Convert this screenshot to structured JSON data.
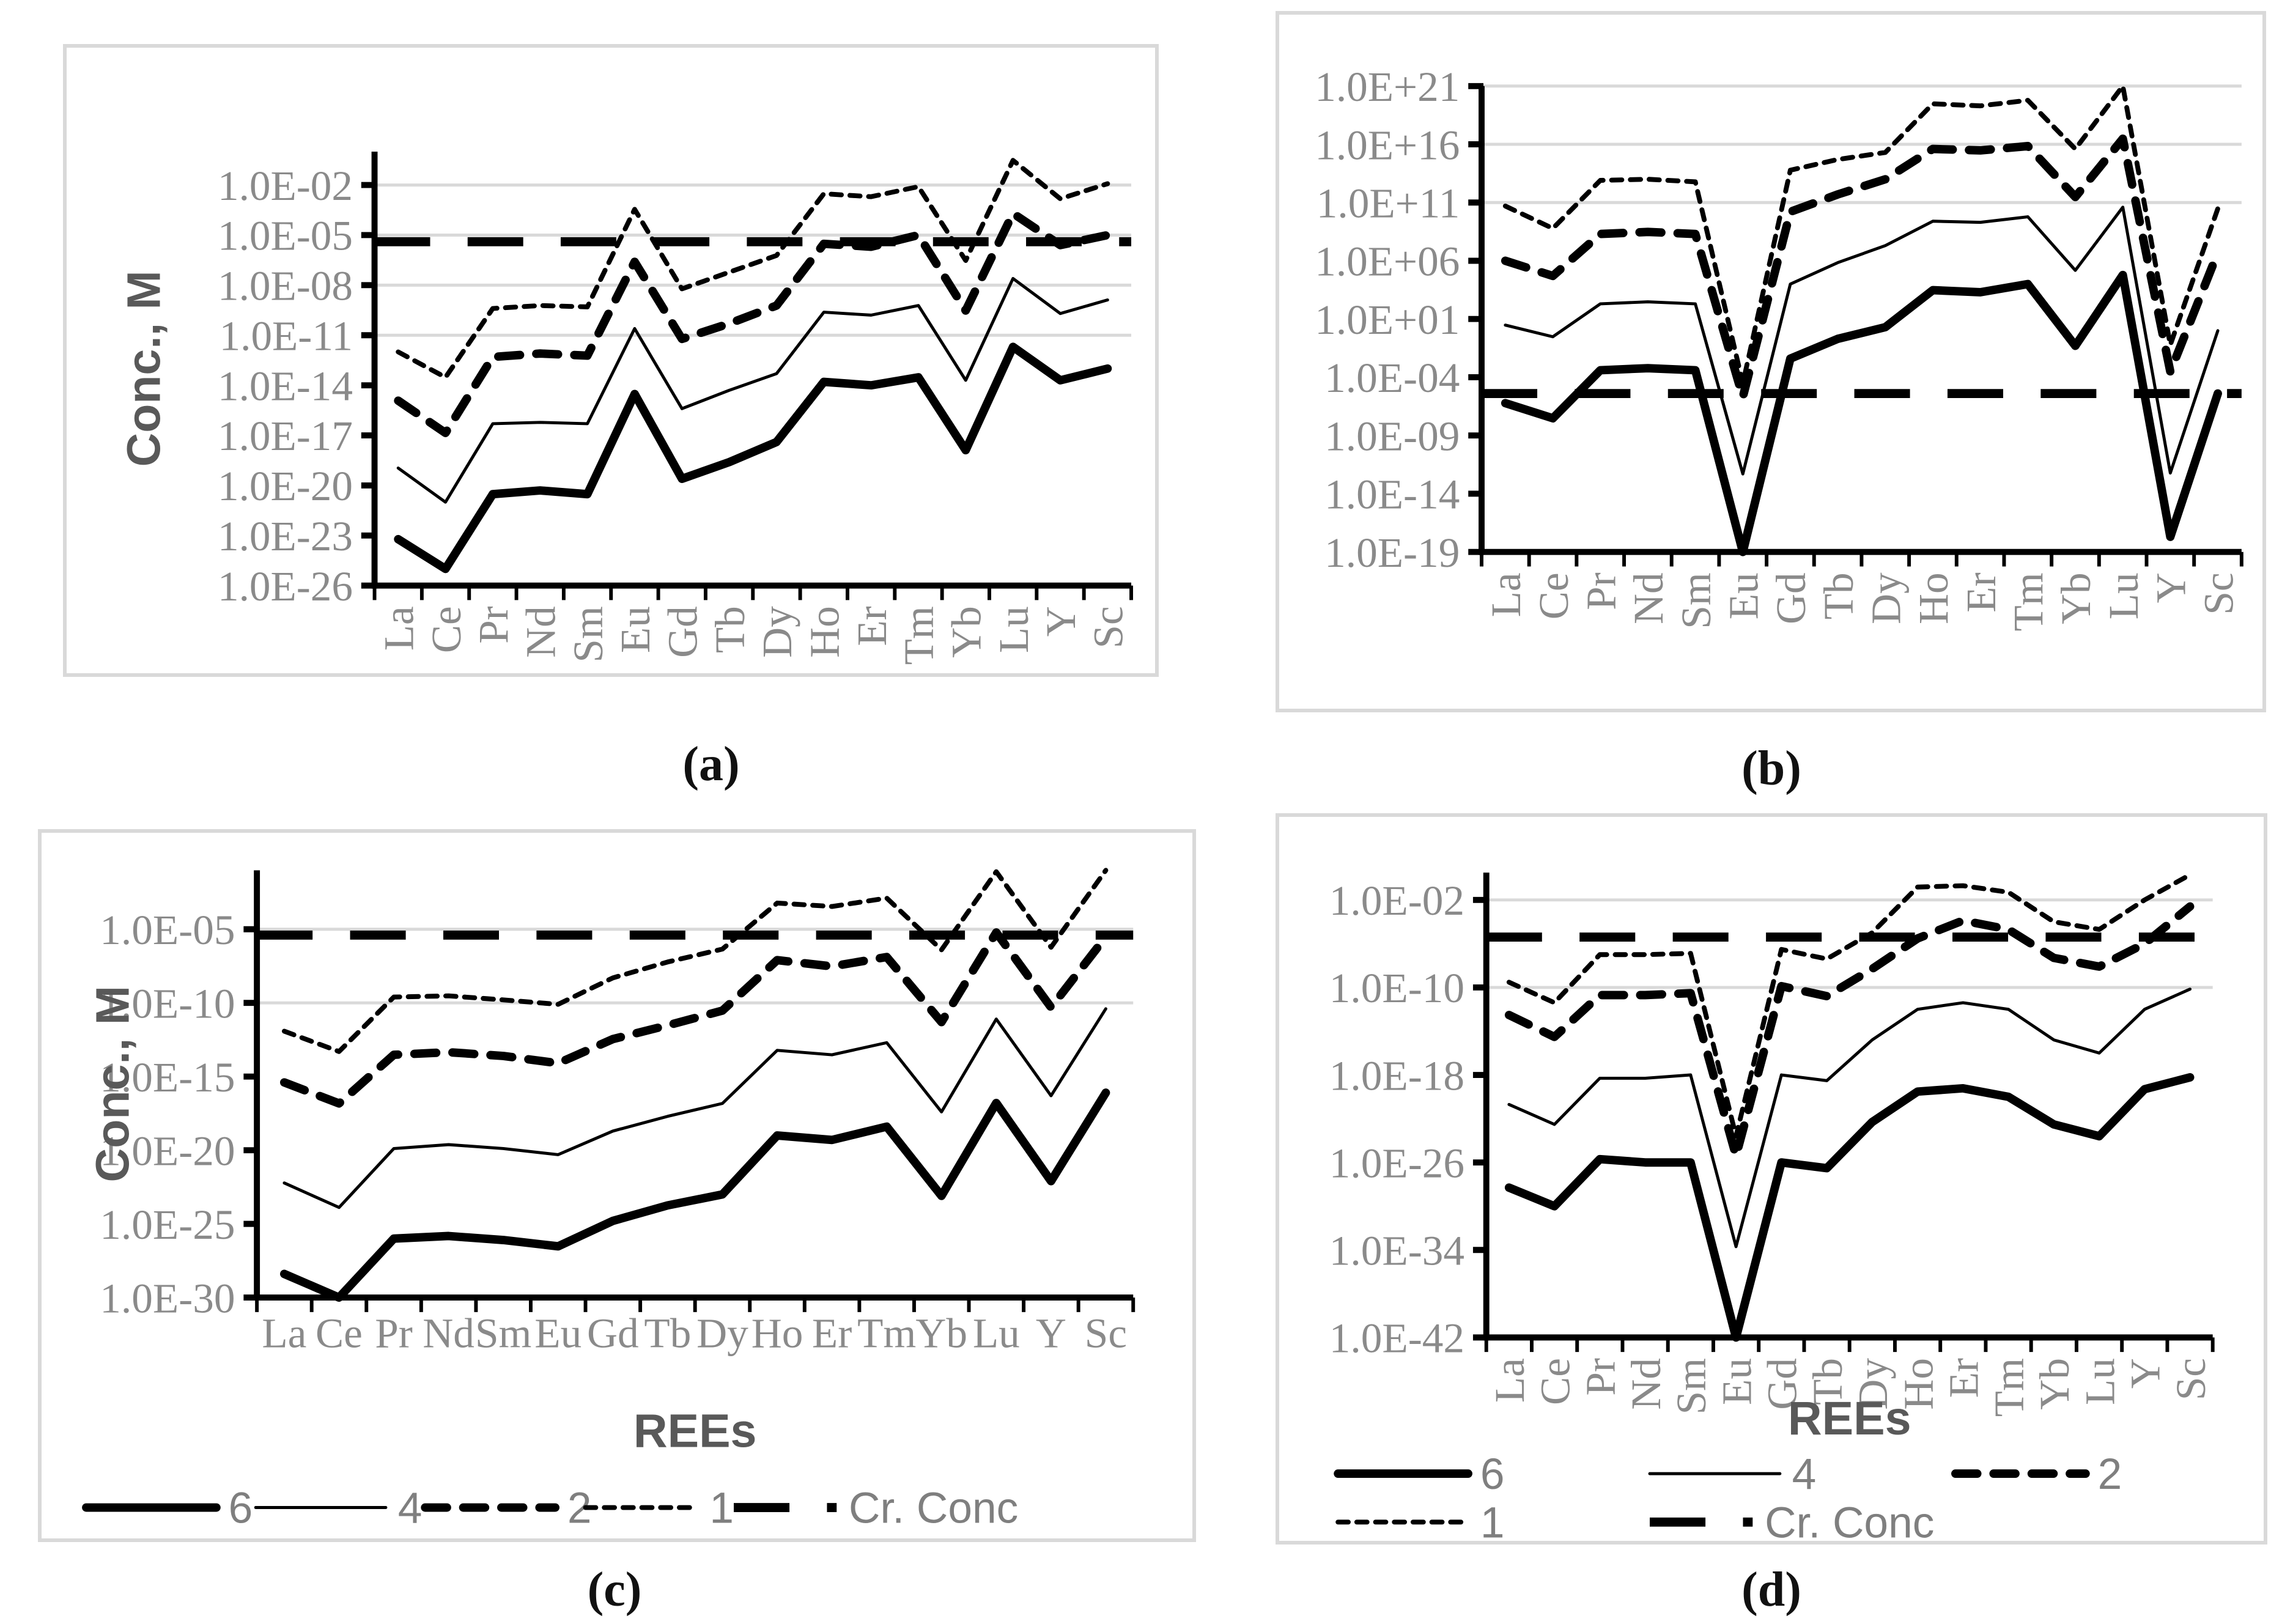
{
  "colors": {
    "series_line": "#000000",
    "gridline": "#d9d9d9",
    "tick_label": "#8a8a8a",
    "axis_title": "#595959",
    "legend_text": "#7f7f7f",
    "panel_border": "#d9d9d9",
    "caption": "#111111"
  },
  "captions": {
    "a": "(a)",
    "b": "(b)",
    "c": "(c)",
    "d": "(d)"
  },
  "chart_data": [
    {
      "id": "a",
      "type": "line",
      "caption": "(a)",
      "ylabel": "Conc., M",
      "xlabel": "",
      "x_categories": [
        "La",
        "Ce",
        "Pr",
        "Nd",
        "Sm",
        "Eu",
        "Gd",
        "Tb",
        "Dy",
        "Ho",
        "Er",
        "Tm",
        "Yb",
        "Lu",
        "Y",
        "Sc"
      ],
      "x_label_rotated": true,
      "y_axis": {
        "ticks": [
          "1.0E-02",
          "1.0E-05",
          "1.0E-08",
          "1.0E-11",
          "1.0E-14",
          "1.0E-17",
          "1.0E-20",
          "1.0E-23",
          "1.0E-26"
        ],
        "tick_exps": [
          -2,
          -5,
          -8,
          -11,
          -14,
          -17,
          -20,
          -23,
          -26
        ],
        "ylim_exp": [
          0,
          -26
        ],
        "grid_exps": [
          -2,
          -5,
          -8,
          -11
        ]
      },
      "series": [
        {
          "name": "6",
          "style": "solid-thick",
          "values": [
            6e-24,
            1e-25,
            3e-21,
            5e-21,
            3e-21,
            3e-15,
            2.5e-20,
            2.5e-19,
            4e-18,
            1.6e-14,
            1e-14,
            3e-14,
            1.3e-18,
            2e-12,
            2e-14,
            1e-13
          ]
        },
        {
          "name": "4",
          "style": "solid-thin",
          "values": [
            1.1e-19,
            1e-21,
            5e-17,
            6e-17,
            5e-17,
            2.5e-11,
            4e-16,
            5e-15,
            5e-14,
            2.4e-10,
            1.6e-10,
            6e-10,
            2e-14,
            2.5e-08,
            2e-10,
            1.3e-09
          ]
        },
        {
          "name": "2",
          "style": "dash-thick",
          "values": [
            1.2e-15,
            1.4e-17,
            5e-13,
            8e-13,
            6e-13,
            2.5e-07,
            6e-12,
            5e-11,
            6e-10,
            3e-06,
            2e-06,
            1e-05,
            3e-10,
            0.0002,
            2.5e-06,
            1e-05
          ]
        },
        {
          "name": "1",
          "style": "dash-fine",
          "values": [
            1e-12,
            3e-14,
            4e-10,
            6e-10,
            5e-10,
            0.00035,
            6e-09,
            6e-08,
            6e-07,
            0.003,
            0.002,
            0.008,
            3e-07,
            0.3,
            0.0015,
            0.012
          ]
        },
        {
          "name": "Cr. Conc",
          "style": "dash-long",
          "constant": 4e-06
        }
      ],
      "legend": null
    },
    {
      "id": "b",
      "type": "line",
      "caption": "(b)",
      "ylabel": "",
      "xlabel": "",
      "x_categories": [
        "La",
        "Ce",
        "Pr",
        "Nd",
        "Sm",
        "Eu",
        "Gd",
        "Tb",
        "Dy",
        "Ho",
        "Er",
        "Tm",
        "Yb",
        "Lu",
        "Y",
        "Sc"
      ],
      "x_label_rotated": true,
      "y_axis": {
        "ticks": [
          "1.0E+21",
          "1.0E+16",
          "1.0E+11",
          "1.0E+06",
          "1.0E+01",
          "1.0E-04",
          "1.0E-09",
          "1.0E-14",
          "1.0E-19"
        ],
        "tick_exps": [
          21,
          16,
          11,
          6,
          1,
          -4,
          -9,
          -14,
          -19
        ],
        "ylim_exp": [
          21,
          -19
        ],
        "grid_exps": [
          21,
          16,
          11
        ]
      },
      "series": [
        {
          "name": "6",
          "style": "solid-thick",
          "values": [
            6e-07,
            3e-08,
            0.0004,
            0.0006,
            0.0004,
            1e-19,
            0.004,
            0.2,
            2.0,
            3000.0,
            2000.0,
            10000.0,
            0.05,
            60000.0,
            2e-18,
            4e-06
          ]
        },
        {
          "name": "4",
          "style": "solid-thin",
          "values": [
            3.0,
            0.3,
            200.0,
            300.0,
            200.0,
            5e-13,
            10000.0,
            700000.0,
            20000000.0,
            2500000000.0,
            2000000000.0,
            6000000000.0,
            150000.0,
            40000000000.0,
            6e-13,
            1.0
          ]
        },
        {
          "name": "2",
          "style": "dash-thick",
          "values": [
            1000000.0,
            50000.0,
            200000000.0,
            300000000.0,
            200000000.0,
            2e-06,
            16000000000.0,
            500000000000.0,
            10000000000000.0,
            4000000000000000.0,
            3000000000000000.0,
            7000000000000000.0,
            300000000000.0,
            3e+16,
            0.0003,
            5000000.0
          ]
        },
        {
          "name": "1",
          "style": "dash-fine",
          "values": [
            50000000000.0,
            600000000.0,
            8000000000000.0,
            10000000000000.0,
            6000000000000.0,
            3e-05,
            60000000000000.0,
            500000000000000.0,
            2000000000000000.0,
            3e+19,
            2e+19,
            6e+19,
            4000000000000000.0,
            1e+21,
            0.06,
            30000000000.0
          ]
        },
        {
          "name": "Cr. Conc",
          "style": "dash-long",
          "constant": 4e-06
        }
      ],
      "legend": null
    },
    {
      "id": "c",
      "type": "line",
      "caption": "(c)",
      "ylabel": "Conc., M",
      "xlabel": "REEs",
      "x_categories": [
        "La",
        "Ce",
        "Pr",
        "Nd",
        "Sm",
        "Eu",
        "Gd",
        "Tb",
        "Dy",
        "Ho",
        "Er",
        "Tm",
        "Yb",
        "Lu",
        "Y",
        "Sc"
      ],
      "x_label_rotated": false,
      "y_axis": {
        "ticks": [
          "1.0E-05",
          "1.0E-10",
          "1.0E-15",
          "1.0E-20",
          "1.0E-25",
          "1.0E-30"
        ],
        "tick_exps": [
          -5,
          -10,
          -15,
          -20,
          -25,
          -30
        ],
        "ylim_exp": [
          -1,
          -30
        ],
        "grid_exps": [
          -5,
          -10
        ]
      },
      "series": [
        {
          "name": "6",
          "style": "solid-thick",
          "values": [
            4e-29,
            1e-30,
            1e-26,
            1.5e-26,
            8e-27,
            3e-27,
            1.6e-25,
            1.8e-24,
            1e-23,
            1e-19,
            5e-20,
            4e-19,
            8e-24,
            1.6e-17,
            8e-23,
            8e-17
          ]
        },
        {
          "name": "4",
          "style": "solid-thin",
          "values": [
            6e-23,
            1.3e-24,
            1.3e-20,
            2.4e-20,
            1.3e-20,
            5e-21,
            2e-19,
            2e-18,
            1.5e-17,
            6e-14,
            3e-14,
            2e-13,
            4e-18,
            8e-12,
            5e-17,
            4e-11
          ]
        },
        {
          "name": "2",
          "style": "dash-thick",
          "values": [
            4e-16,
            1.5e-17,
            3e-14,
            4.5e-14,
            2.5e-14,
            8e-15,
            3.5e-13,
            3e-12,
            3e-11,
            8e-08,
            3e-08,
            1.3e-07,
            5e-12,
            6e-06,
            5e-11,
            3e-06
          ]
        },
        {
          "name": "1",
          "style": "dash-fine",
          "values": [
            1.2e-12,
            5e-14,
            2.5e-10,
            3e-10,
            1.6e-10,
            8e-11,
            5e-09,
            6e-08,
            4.5e-07,
            0.0006,
            0.00035,
            0.0013,
            4e-07,
            0.08,
            6e-07,
            0.1
          ]
        },
        {
          "name": "Cr. Conc",
          "style": "dash-long",
          "constant": 4e-06
        }
      ],
      "legend": {
        "rows": [
          [
            "6",
            "4",
            "2",
            "1",
            "Cr. Conc"
          ]
        ]
      }
    },
    {
      "id": "d",
      "type": "line",
      "caption": "(d)",
      "ylabel": "",
      "xlabel": "REEs",
      "x_categories": [
        "La",
        "Ce",
        "Pr",
        "Nd",
        "Sm",
        "Eu",
        "Gd",
        "Tb",
        "Dy",
        "Ho",
        "Er",
        "Tm",
        "Yb",
        "Lu",
        "Y",
        "Sc"
      ],
      "x_label_rotated": true,
      "y_axis": {
        "ticks": [
          "1.0E-02",
          "1.0E-10",
          "1.0E-18",
          "1.0E-26",
          "1.0E-34",
          "1.0E-42"
        ],
        "tick_exps": [
          -2,
          -10,
          -18,
          -26,
          -34,
          -42
        ],
        "ylim_exp": [
          0.5,
          -42
        ],
        "grid_exps": [
          -2,
          -10
        ]
      },
      "series": [
        {
          "name": "6",
          "style": "solid-thick",
          "values": [
            5e-29,
            1e-30,
            2e-26,
            1e-26,
            1e-26,
            1e-42,
            1e-26,
            3e-27,
            5e-23,
            3e-20,
            6e-20,
            1e-20,
            3e-23,
            2.5e-24,
            5e-20,
            6e-19
          ]
        },
        {
          "name": "4",
          "style": "solid-thin",
          "values": [
            2e-21,
            3e-23,
            5e-19,
            5e-19,
            1e-18,
            2e-34,
            1e-18,
            3e-19,
            1.6e-15,
            1e-12,
            4e-12,
            1e-12,
            1.6e-15,
            1e-16,
            1e-12,
            7e-11
          ]
        },
        {
          "name": "2",
          "style": "dash-thick",
          "values": [
            3e-13,
            3e-15,
            2e-11,
            2e-11,
            3e-11,
            4e-26,
            1.3e-10,
            1.6e-11,
            5e-09,
            3e-06,
            0.00013,
            2e-05,
            5e-08,
            8e-09,
            1e-06,
            0.0025
          ]
        },
        {
          "name": "1",
          "style": "dash-fine",
          "values": [
            3e-10,
            4e-12,
            1e-07,
            1e-07,
            1.3e-07,
            2.5e-24,
            3e-07,
            4e-08,
            1e-05,
            0.15,
            0.2,
            0.05,
            0.0001,
            2e-05,
            0.01,
            2.0
          ]
        },
        {
          "name": "Cr. Conc",
          "style": "dash-long",
          "constant": 4e-06
        }
      ],
      "legend": {
        "rows": [
          [
            "6",
            "4",
            "2"
          ],
          [
            "1",
            "Cr. Conc"
          ]
        ]
      }
    }
  ]
}
